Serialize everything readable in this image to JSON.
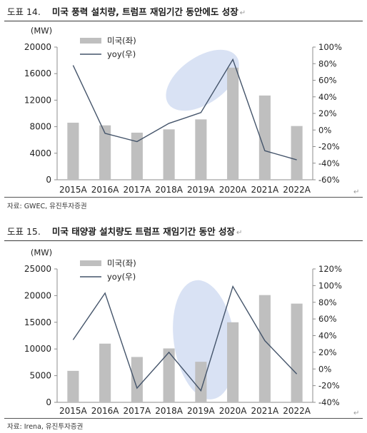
{
  "figures": [
    {
      "number": "도표 14.",
      "title": "미국 풍력 설치량, 트럼프 재임기간 동안에도 성장",
      "source": "자료: GWEC, 유진투자증권",
      "chart_data": {
        "type": "bar+line",
        "unit_label": "(MW)",
        "categories": [
          "2015A",
          "2016A",
          "2017A",
          "2018A",
          "2019A",
          "2020A",
          "2021A",
          "2022A"
        ],
        "series": [
          {
            "name": "미국(좌)",
            "type": "bar",
            "axis": "left",
            "color": "#bfbfbf",
            "values": [
              8600,
              8200,
              7100,
              7600,
              9100,
              16900,
              12700,
              8100
            ]
          },
          {
            "name": "yoy(우)",
            "type": "line",
            "axis": "right",
            "color": "#44546a",
            "values": [
              78,
              -4,
              -14,
              8,
              21,
              85,
              -25,
              -36
            ]
          }
        ],
        "y_left": {
          "min": 0,
          "max": 20000,
          "ticks": [
            "0",
            "4000",
            "8000",
            "12000",
            "16000",
            "20000"
          ]
        },
        "y_right": {
          "min": -60,
          "max": 100,
          "ticks": [
            "-60%",
            "-40%",
            "-20%",
            "0%",
            "20%",
            "40%",
            "60%",
            "80%",
            "100%"
          ]
        },
        "highlight": {
          "type": "ellipse",
          "color": "#c9d6f0",
          "x_center": 4.55,
          "y_center": 60,
          "x_radius": 1.3,
          "y_radius": 28,
          "rotate": -35
        },
        "legend_position": "top-left",
        "grid": false
      }
    },
    {
      "number": "도표 15.",
      "title": "미국 태양광 설치량도 트럼프 재임기간 동안 성장",
      "source": "자료: Irena, 유진투자증권",
      "chart_data": {
        "type": "bar+line",
        "unit_label": "(MW)",
        "categories": [
          "2015A",
          "2016A",
          "2017A",
          "2018A",
          "2019A",
          "2020A",
          "2021A",
          "2022A"
        ],
        "series": [
          {
            "name": "미국(좌)",
            "type": "bar",
            "axis": "left",
            "color": "#bfbfbf",
            "values": [
              5900,
              11000,
              8500,
              10100,
              7600,
              15000,
              20100,
              18500
            ]
          },
          {
            "name": "yoy(우)",
            "type": "line",
            "axis": "right",
            "color": "#44546a",
            "values": [
              35,
              91,
              -23,
              20,
              -26,
              99,
              34,
              -6
            ]
          }
        ],
        "y_left": {
          "min": 0,
          "max": 25000,
          "ticks": [
            "0",
            "5000",
            "10000",
            "15000",
            "20000",
            "25000"
          ]
        },
        "y_right": {
          "min": -40,
          "max": 120,
          "ticks": [
            "-40%",
            "-20%",
            "0%",
            "20%",
            "40%",
            "60%",
            "80%",
            "100%",
            "120%"
          ]
        },
        "highlight": {
          "type": "ellipse",
          "color": "#c9d6f0",
          "x_center": 4.6,
          "y_center": 35,
          "x_radius": 0.95,
          "y_radius": 72,
          "rotate": -8
        },
        "legend_position": "top-left",
        "grid": false
      }
    }
  ]
}
